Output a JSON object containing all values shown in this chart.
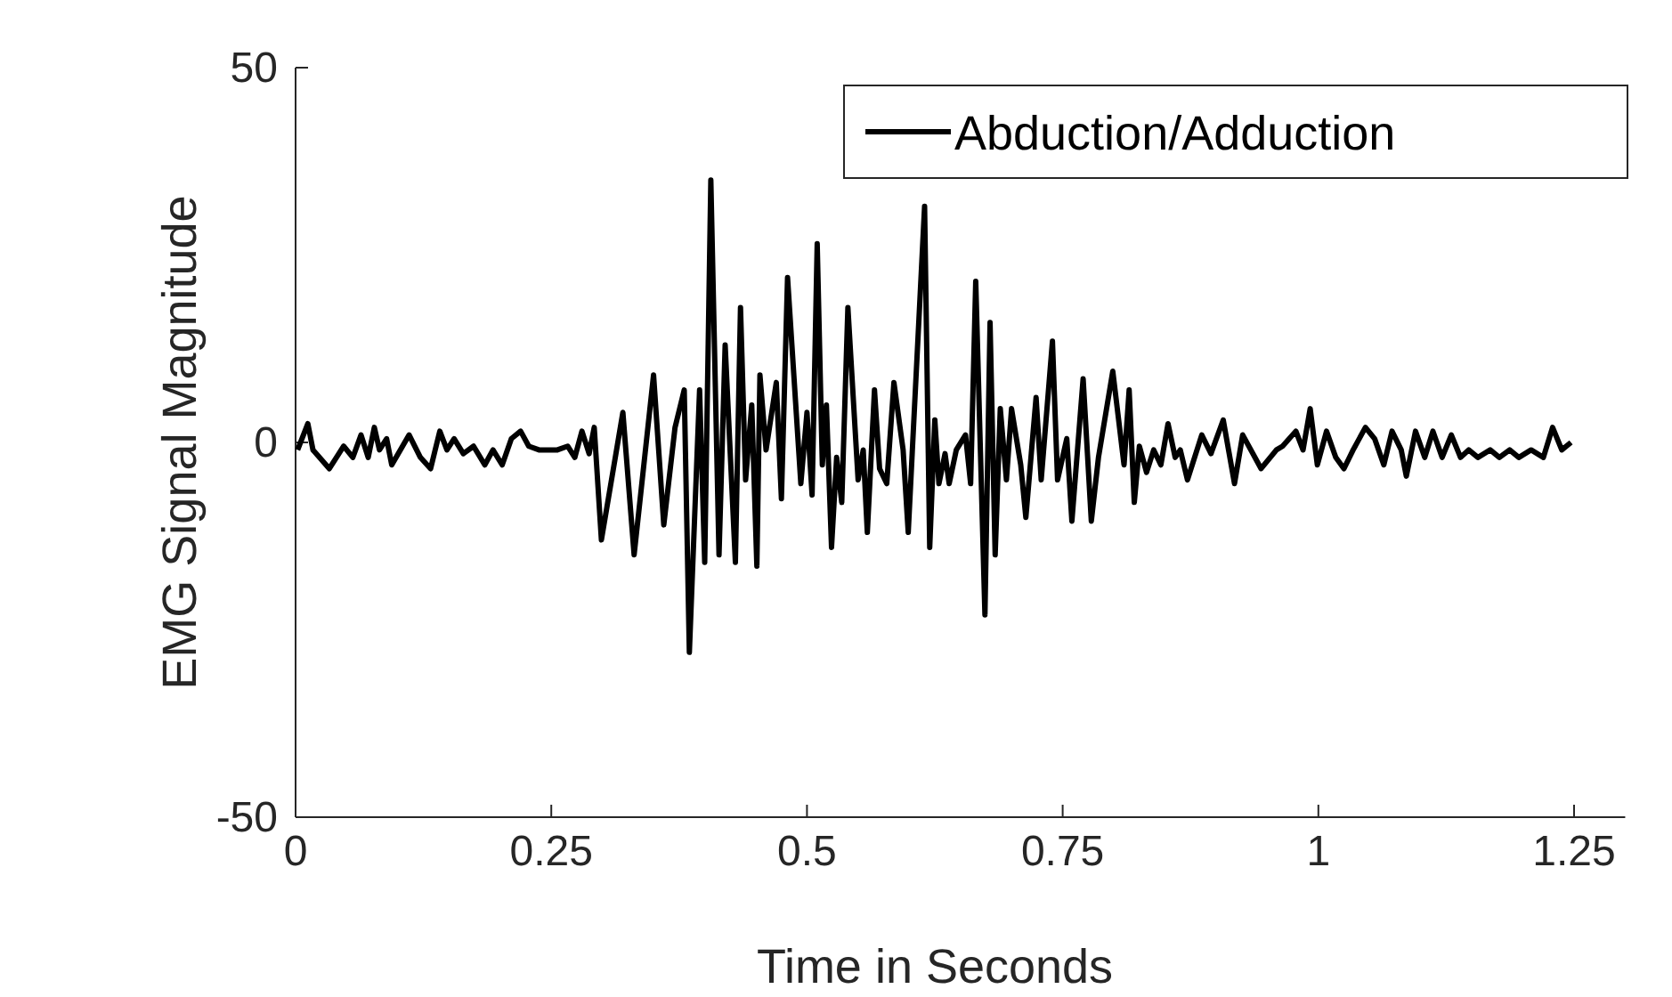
{
  "chart_data": {
    "type": "line",
    "xlabel": "Time in Seconds",
    "ylabel": "EMG Signal Magnitude",
    "xlim": [
      0,
      1.3
    ],
    "ylim": [
      -50,
      50
    ],
    "xticks": [
      0,
      0.25,
      0.5,
      0.75,
      1,
      1.25
    ],
    "yticks": [
      -50,
      0,
      50
    ],
    "grid": false,
    "legend": "top right",
    "line_style": "solid",
    "series": [
      {
        "name": "Abduction/Adduction",
        "color": "#000000",
        "x": [
          0.002,
          0.012,
          0.017,
          0.033,
          0.047,
          0.056,
          0.064,
          0.071,
          0.077,
          0.082,
          0.089,
          0.094,
          0.111,
          0.122,
          0.132,
          0.141,
          0.148,
          0.155,
          0.164,
          0.174,
          0.185,
          0.193,
          0.202,
          0.211,
          0.22,
          0.228,
          0.238,
          0.256,
          0.266,
          0.273,
          0.28,
          0.287,
          0.292,
          0.299,
          0.32,
          0.331,
          0.35,
          0.36,
          0.371,
          0.38,
          0.385,
          0.395,
          0.4,
          0.406,
          0.414,
          0.42,
          0.43,
          0.435,
          0.44,
          0.446,
          0.451,
          0.454,
          0.46,
          0.47,
          0.475,
          0.481,
          0.494,
          0.5,
          0.505,
          0.51,
          0.515,
          0.519,
          0.524,
          0.529,
          0.534,
          0.54,
          0.55,
          0.555,
          0.559,
          0.566,
          0.571,
          0.578,
          0.585,
          0.594,
          0.599,
          0.615,
          0.62,
          0.625,
          0.629,
          0.635,
          0.639,
          0.646,
          0.655,
          0.66,
          0.665,
          0.674,
          0.679,
          0.684,
          0.689,
          0.695,
          0.7,
          0.709,
          0.714,
          0.724,
          0.729,
          0.74,
          0.745,
          0.754,
          0.759,
          0.77,
          0.778,
          0.785,
          0.799,
          0.81,
          0.815,
          0.82,
          0.825,
          0.832,
          0.839,
          0.846,
          0.853,
          0.86,
          0.865,
          0.872,
          0.886,
          0.895,
          0.907,
          0.918,
          0.926,
          0.944,
          0.959,
          0.965,
          0.978,
          0.985,
          0.992,
          0.999,
          1.008,
          1.017,
          1.025,
          1.034,
          1.046,
          1.055,
          1.064,
          1.072,
          1.081,
          1.086,
          1.095,
          1.104,
          1.112,
          1.121,
          1.13,
          1.139,
          1.147,
          1.156,
          1.168,
          1.177,
          1.187,
          1.196,
          1.208,
          1.22,
          1.229,
          1.238,
          1.247
        ],
        "values": [
          -1,
          2.5,
          -1,
          -3.5,
          -0.5,
          -2,
          1,
          -2,
          2,
          -1,
          0.5,
          -3,
          1,
          -2,
          -3.5,
          1.5,
          -1,
          0.5,
          -1.5,
          -0.5,
          -3,
          -1,
          -3,
          0.5,
          1.5,
          -0.5,
          -1,
          -1,
          -0.5,
          -2,
          1.5,
          -1.5,
          2,
          -13,
          4,
          -15,
          9,
          -11,
          2,
          7,
          -28,
          7,
          -16,
          35,
          -15,
          13,
          -16,
          18,
          -5,
          5,
          -16.5,
          9,
          -1,
          8,
          -7.5,
          22,
          -5.5,
          4,
          -7,
          26.5,
          -3,
          5,
          -14,
          -2,
          -8,
          18,
          -5,
          -1,
          -12,
          7,
          -3.5,
          -5.5,
          8,
          -1,
          -12,
          31.5,
          -14,
          3,
          -5.5,
          -1.5,
          -5.5,
          -1,
          1,
          -5.5,
          21.5,
          -23,
          16,
          -15,
          4.5,
          -5,
          4.5,
          -3,
          -10,
          6,
          -5,
          13.5,
          -5,
          0.5,
          -10.5,
          8.5,
          -10.5,
          -2,
          9.5,
          -3,
          7,
          -8,
          -0.5,
          -4,
          -1,
          -3,
          2.5,
          -2,
          -1,
          -5,
          1,
          -1.5,
          3,
          -5.5,
          1,
          -3.5,
          -1,
          -0.5,
          1.5,
          -1,
          4.5,
          -3,
          1.5,
          -2,
          -3.5,
          -1,
          2,
          0.5,
          -3,
          1.5,
          -1,
          -4.5,
          1.5,
          -2,
          1.5,
          -2,
          1,
          -2,
          -1,
          -2,
          -1,
          -2,
          -1,
          -2,
          -1,
          -2,
          2,
          -1,
          0
        ]
      }
    ]
  }
}
